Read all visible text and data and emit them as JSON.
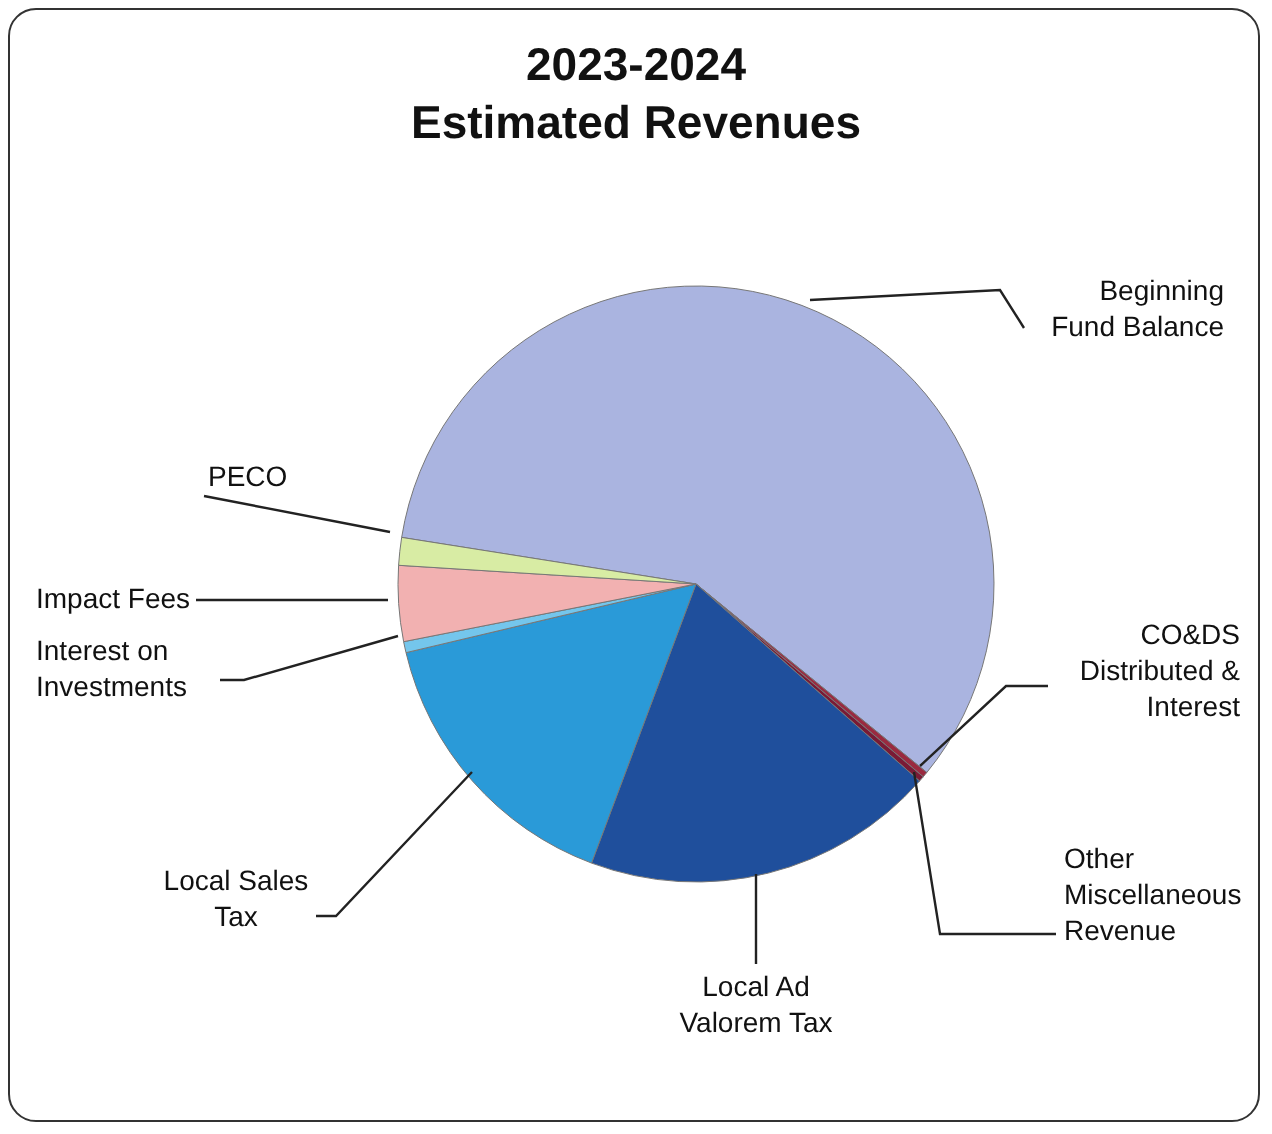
{
  "chart_data": {
    "type": "pie",
    "title": "2023-2024\nEstimated Revenues",
    "categories": [
      "Beginning\nFund Balance",
      "CO&DS\nDistributed &\nInterest",
      "Other\nMiscellaneous\nRevenue",
      "Local Ad\nValorem Tax",
      "Local Sales\nTax",
      "Interest on\nInvestments",
      "Impact Fees",
      "PECO"
    ],
    "values": [
      58.4,
      0.3,
      0.3,
      19.2,
      15.6,
      0.6,
      4.1,
      1.5
    ],
    "colors": [
      "#aab4e0",
      "#9a2a40",
      "#7a1a35",
      "#1f4f9c",
      "#2a9ad8",
      "#74c6ec",
      "#f2b1b1",
      "#d8eca4"
    ]
  }
}
